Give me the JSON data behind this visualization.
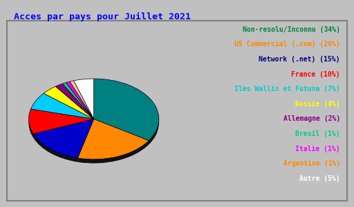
{
  "title": "Acces par pays pour Juillet 2021",
  "title_color": "#0000ff",
  "title_fontsize": 9.5,
  "background_color": "#c0c0c0",
  "border_color": "#808080",
  "labels": [
    "Non-resolu/Inconnu (34%)",
    "US Commercial (.com) (20%)",
    "Network (.net) (15%)",
    "France (10%)",
    "Iles Wallis et Futuna (7%)",
    "Russie (4%)",
    "Allemagne (2%)",
    "Bresil (1%)",
    "Italie (1%)",
    "Argentine (1%)",
    "Autre (5%)"
  ],
  "label_colors": [
    "#008040",
    "#ff8800",
    "#000080",
    "#ff0000",
    "#00cccc",
    "#ffff00",
    "#880088",
    "#00cc88",
    "#ff00ff",
    "#ff8800",
    "#ffffff"
  ],
  "values": [
    34,
    20,
    15,
    10,
    7,
    4,
    2,
    1,
    1,
    1,
    5
  ],
  "slice_colors": [
    "#008080",
    "#ff8800",
    "#0000cc",
    "#ff0000",
    "#00ccff",
    "#ffff00",
    "#880088",
    "#00cc88",
    "#ff00ff",
    "#ffcc99",
    "#ffffff"
  ],
  "legend_fontsize": 7,
  "figsize": [
    5.12,
    3.0
  ],
  "dpi": 100
}
